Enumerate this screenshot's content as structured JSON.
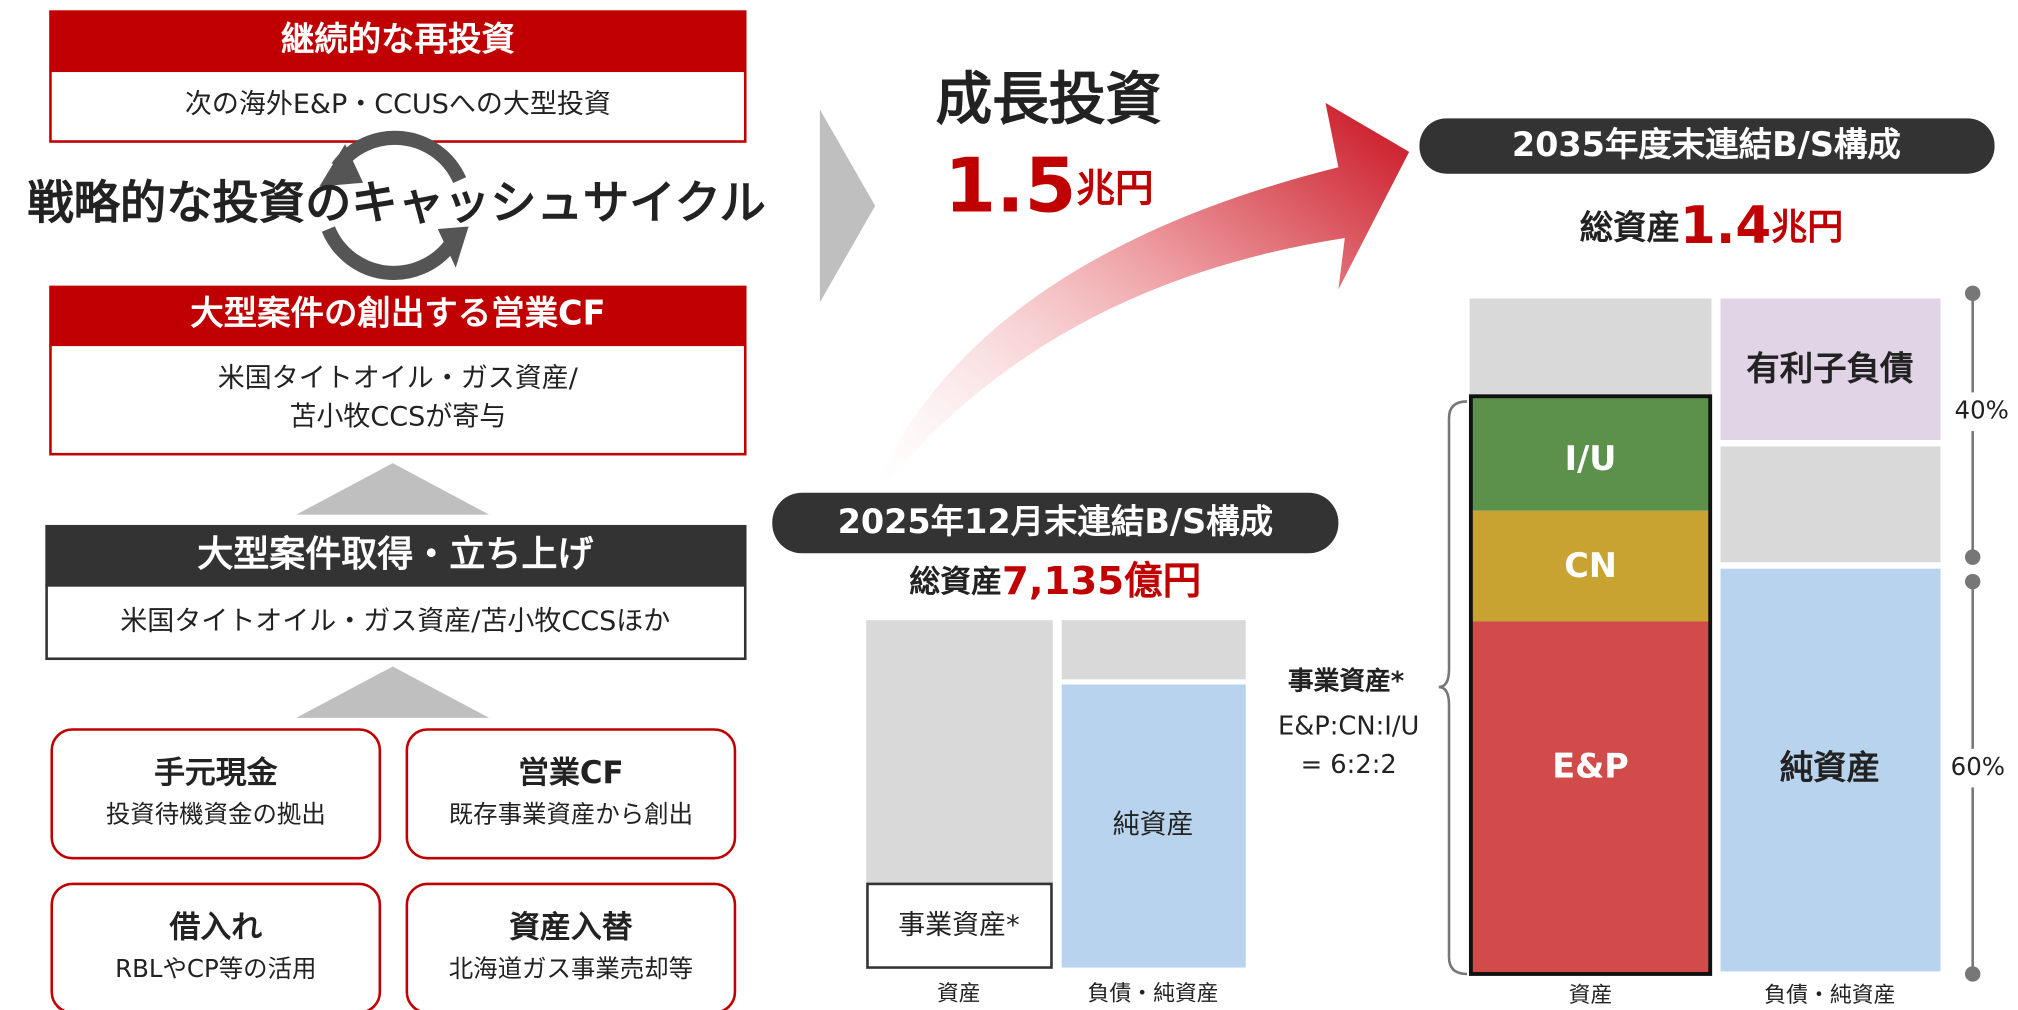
{
  "reinvest": {
    "title": "継続的な再投資",
    "text": "次の海外E&P・CCUSへの大型投資"
  },
  "cycle": {
    "title": "戦略的な投資のキャッシュサイクル"
  },
  "operating_cf": {
    "title": "大型案件の創出する営業CF",
    "lines": [
      "米国タイトオイル・ガス資産/",
      "苫小牧CCSが寄与"
    ]
  },
  "acquisition": {
    "title": "大型案件取得・立ち上げ",
    "text": "米国タイトオイル・ガス資産/苫小牧CCSほか"
  },
  "sources": [
    {
      "title": "手元現金",
      "text": "投資待機資金の拠出"
    },
    {
      "title": "営業CF",
      "text": "既存事業資産から創出"
    },
    {
      "title": "借入れ",
      "text": "RBLやCP等の活用"
    },
    {
      "title": "資産入替",
      "text": "北海道ガス事業売却等"
    }
  ],
  "growth": {
    "title": "成長投資",
    "amount": "1.5",
    "unit": "兆円"
  },
  "bs_2025": {
    "title": "2025年12月末連結B/S構成",
    "total_label": "総資産",
    "total": "7,135億円",
    "business_assets": "事業資産*",
    "net_assets": "純資産",
    "x_labels": [
      "資産",
      "負債・純資産"
    ]
  },
  "bs_2035": {
    "title": "2035年度末連結B/S構成",
    "total_label": "総資産",
    "total": "1.4",
    "total_unit": "兆円",
    "debt": "有利子負債",
    "segments": [
      "I/U",
      "CN",
      "E&P"
    ],
    "net_assets": "純資産",
    "shares": [
      "40%",
      "60%"
    ],
    "note_title": "事業資産*",
    "note_lines": [
      "E&P:CN:I/U",
      "= 6:2:2"
    ],
    "x_labels": [
      "資産",
      "負債・純資産"
    ]
  }
}
